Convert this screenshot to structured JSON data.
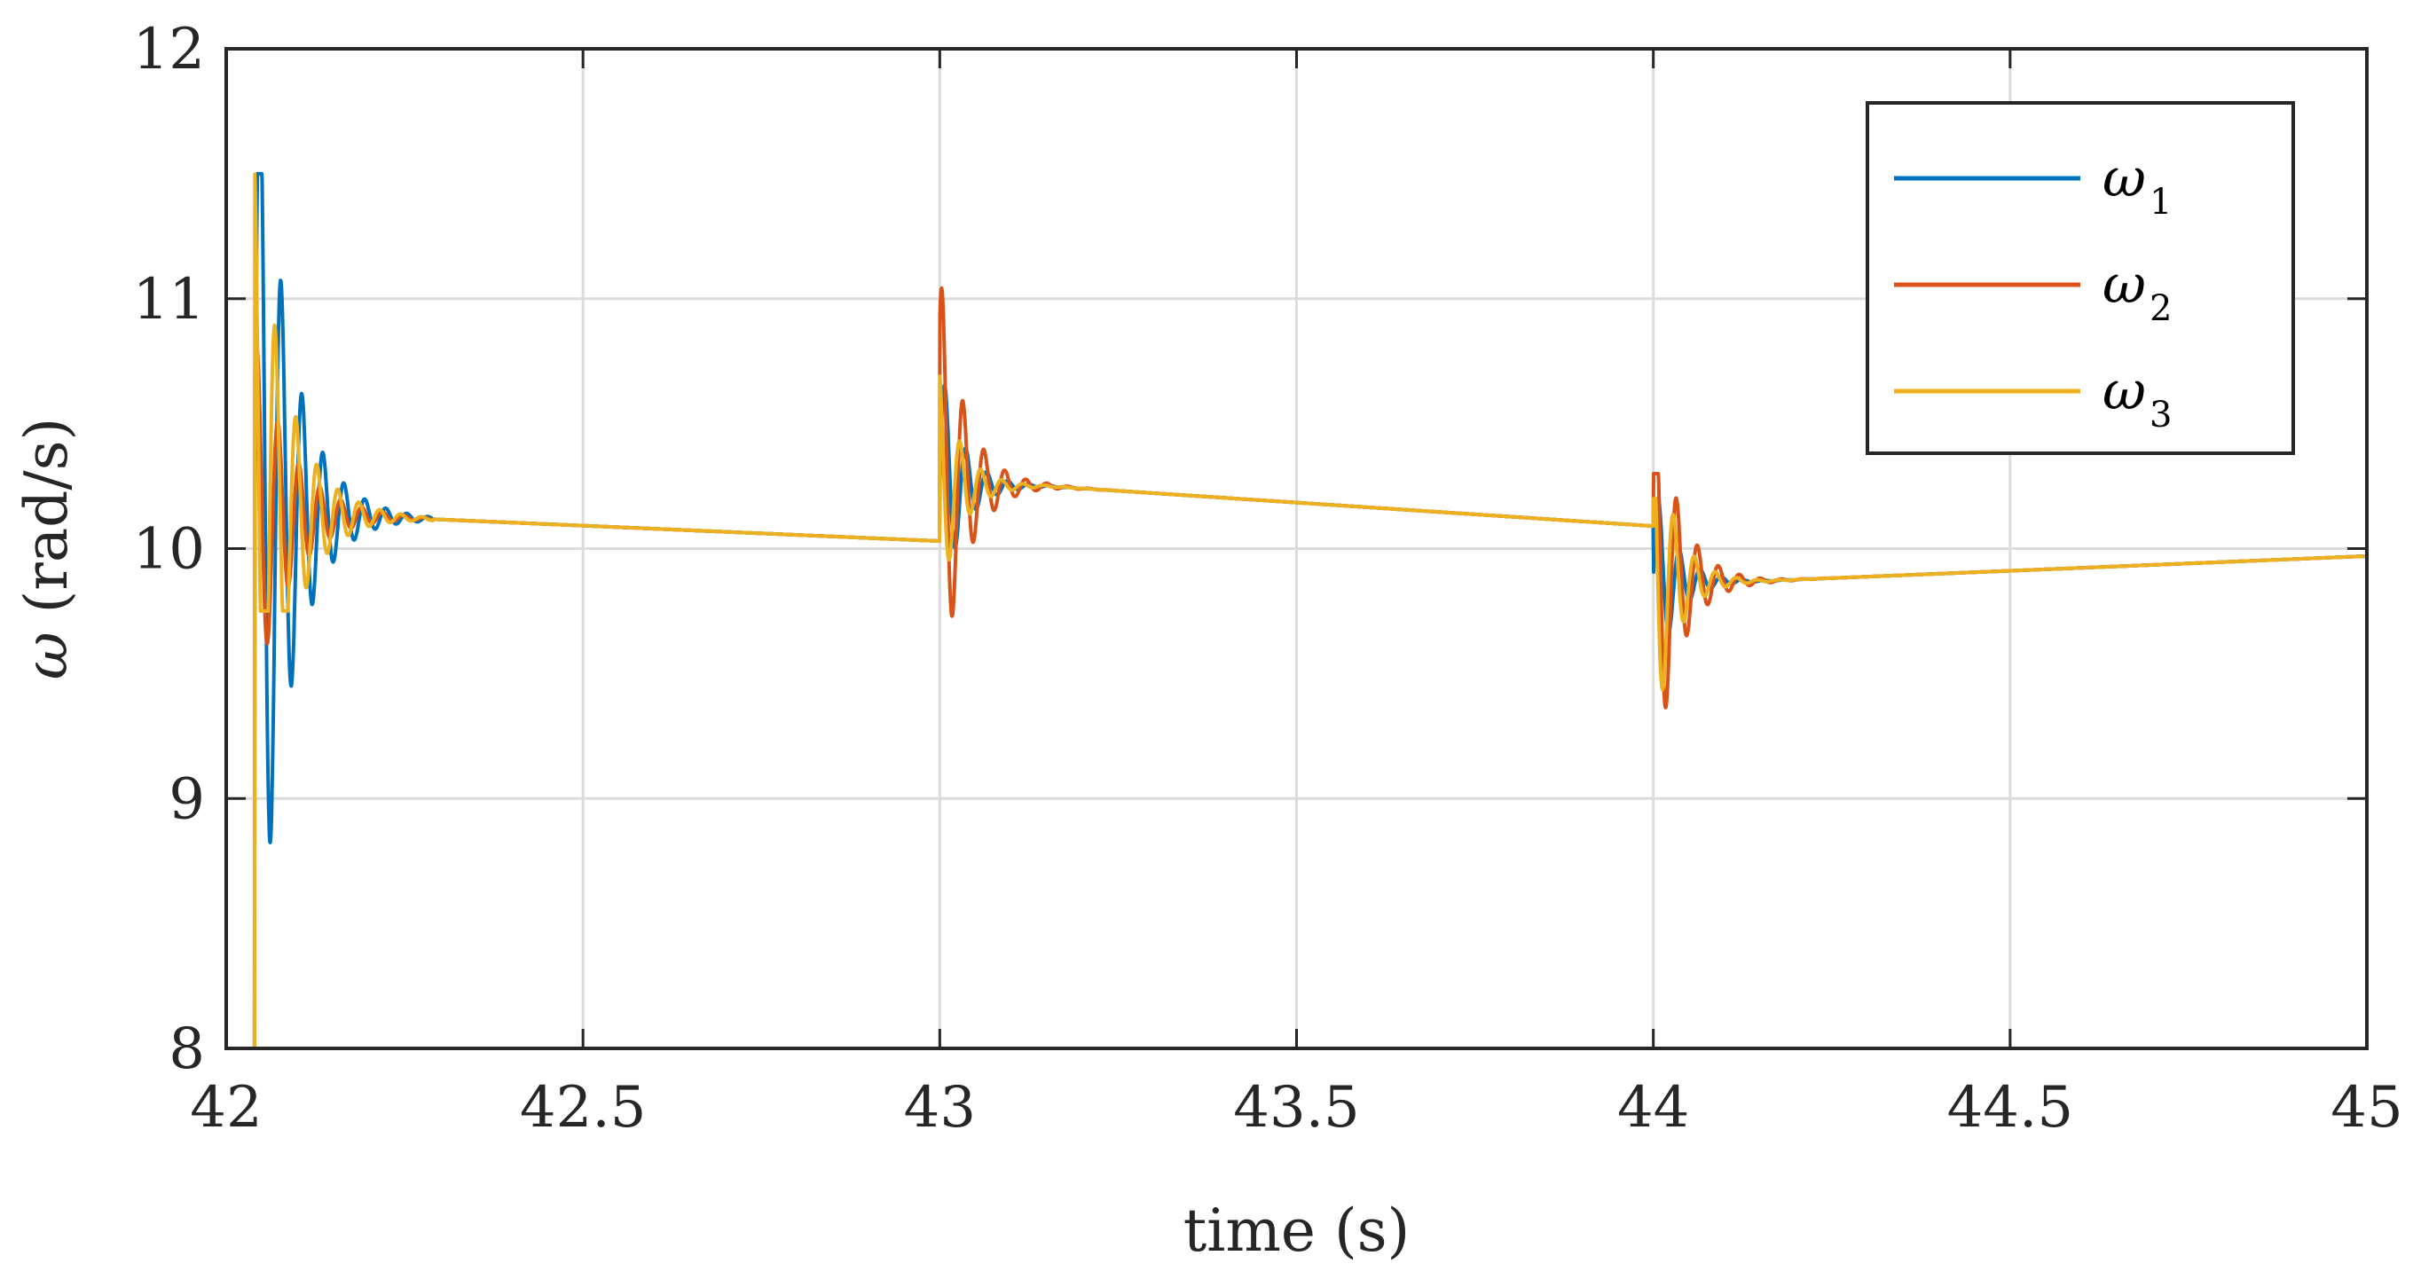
{
  "chart_data": {
    "type": "line",
    "xlabel": "time (s)",
    "ylabel_symbol": "ω",
    "ylabel_unit": " (rad/s)",
    "xlim": [
      42,
      45
    ],
    "ylim": [
      8,
      12
    ],
    "xticks": [
      "42",
      "42.5",
      "43",
      "43.5",
      "44",
      "44.5",
      "45"
    ],
    "xtick_values": [
      42,
      42.5,
      43,
      43.5,
      44,
      44.5,
      45
    ],
    "yticks": [
      "8",
      "9",
      "10",
      "11",
      "12"
    ],
    "ytick_values": [
      8,
      9,
      10,
      11,
      12
    ],
    "grid": true,
    "legend_position": "top-right",
    "events": [
      {
        "t": 42.04,
        "level_before": 8.0,
        "level_after": 10.13
      },
      {
        "t": 43.0,
        "level_before": 10.03,
        "level_after": 10.25
      },
      {
        "t": 44.0,
        "level_before": 10.09,
        "level_after": 9.87
      }
    ],
    "end_value": 9.97,
    "series": [
      {
        "name": "ω",
        "subscript": "1",
        "color": "#0072BD",
        "transients": [
          {
            "t0": 42.04,
            "peak": 11.5,
            "trough": 8.0,
            "decay": 0.045
          },
          {
            "t0": 43.0,
            "peak": 10.75,
            "trough": 9.78,
            "decay": 0.03
          },
          {
            "t0": 44.0,
            "peak": 10.2,
            "trough": 9.45,
            "decay": 0.03
          }
        ]
      },
      {
        "name": "ω",
        "subscript": "2",
        "color": "#D95319",
        "transients": [
          {
            "t0": 42.04,
            "peak": 10.85,
            "trough": 9.62,
            "decay": 0.05
          },
          {
            "t0": 43.0,
            "peak": 11.1,
            "trough": 9.72,
            "decay": 0.035
          },
          {
            "t0": 44.0,
            "peak": 10.3,
            "trough": 9.04,
            "decay": 0.035
          }
        ]
      },
      {
        "name": "ω",
        "subscript": "3",
        "color": "#EDB120",
        "transients": [
          {
            "t0": 42.04,
            "peak": 11.55,
            "trough": 9.75,
            "decay": 0.045
          },
          {
            "t0": 43.0,
            "peak": 10.7,
            "trough": 9.85,
            "decay": 0.03
          },
          {
            "t0": 44.0,
            "peak": 10.2,
            "trough": 9.2,
            "decay": 0.03
          }
        ]
      }
    ]
  }
}
